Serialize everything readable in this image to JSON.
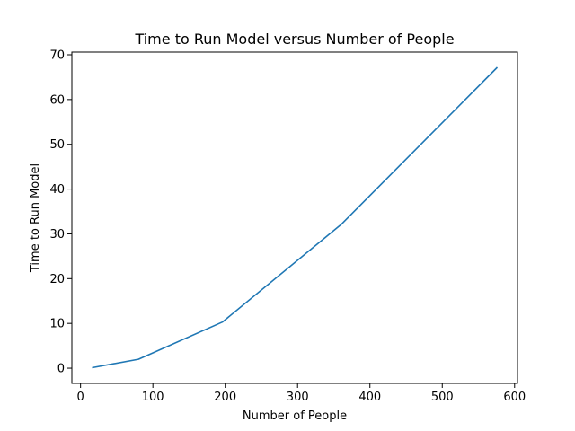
{
  "chart_data": {
    "type": "line",
    "title": "Time to Run Model versus Number of People",
    "xlabel": "Number of People",
    "ylabel": "Time to Run Model",
    "xlim": [
      -12,
      604
    ],
    "ylim": [
      -3.4,
      70.6
    ],
    "xticks": [
      0,
      100,
      200,
      300,
      400,
      500,
      600
    ],
    "yticks": [
      0,
      10,
      20,
      30,
      40,
      50,
      60,
      70
    ],
    "grid": false,
    "series": [
      {
        "color": "#1f77b4",
        "x": [
          16,
          80,
          196,
          361,
          576
        ],
        "y": [
          0.1,
          2.0,
          10.3,
          32.2,
          67.2
        ]
      }
    ]
  }
}
